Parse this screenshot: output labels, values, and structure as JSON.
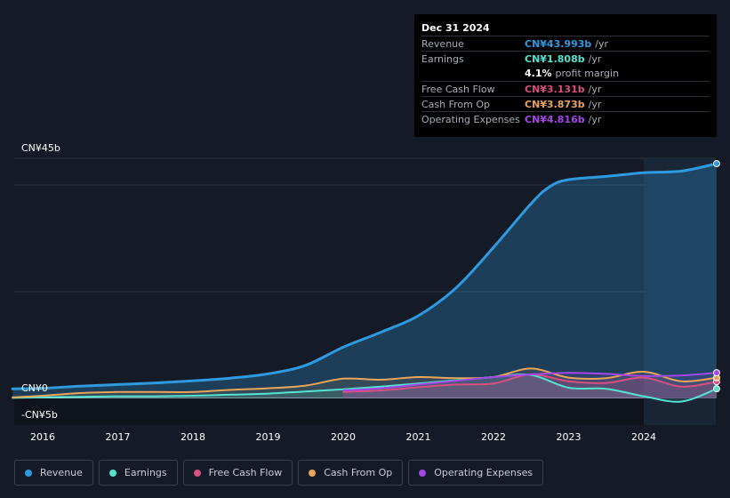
{
  "tooltip": {
    "date": "Dec 31 2024",
    "rows": [
      {
        "label": "Revenue",
        "value": "CN¥43.993b",
        "unit": "/yr",
        "color": "#2f9ae0"
      },
      {
        "label": "Earnings",
        "value": "CN¥1.808b",
        "unit": "/yr",
        "color": "#54e3d0"
      },
      {
        "label": "",
        "value": "4.1%",
        "unit": "profit margin",
        "color": "#ffffff"
      },
      {
        "label": "Free Cash Flow",
        "value": "CN¥3.131b",
        "unit": "/yr",
        "color": "#d84f82"
      },
      {
        "label": "Cash From Op",
        "value": "CN¥3.873b",
        "unit": "/yr",
        "color": "#e8a55b"
      },
      {
        "label": "Operating Expenses",
        "value": "CN¥4.816b",
        "unit": "/yr",
        "color": "#a347e8"
      }
    ]
  },
  "y_labels": {
    "top": "CN¥45b",
    "zero": "CN¥0",
    "bottom": "-CN¥5b"
  },
  "legend": [
    {
      "label": "Revenue",
      "color": "#2f9ae0"
    },
    {
      "label": "Earnings",
      "color": "#54e3d0"
    },
    {
      "label": "Free Cash Flow",
      "color": "#d84f82"
    },
    {
      "label": "Cash From Op",
      "color": "#e8a55b"
    },
    {
      "label": "Operating Expenses",
      "color": "#a347e8"
    }
  ],
  "chart_data": {
    "type": "line",
    "ylim": [
      -5,
      45
    ],
    "x_ticks": [
      "2016",
      "2017",
      "2018",
      "2019",
      "2020",
      "2021",
      "2022",
      "2023",
      "2024"
    ],
    "series": [
      {
        "name": "Revenue",
        "color": "#2f9ae0",
        "points": [
          [
            2015.6,
            1.8
          ],
          [
            2016.0,
            1.9
          ],
          [
            2016.5,
            2.3
          ],
          [
            2017.0,
            2.6
          ],
          [
            2017.5,
            2.9
          ],
          [
            2018.0,
            3.3
          ],
          [
            2018.5,
            3.8
          ],
          [
            2019.0,
            4.6
          ],
          [
            2019.5,
            6.2
          ],
          [
            2020.0,
            9.6
          ],
          [
            2020.5,
            12.4
          ],
          [
            2021.0,
            15.5
          ],
          [
            2021.5,
            20.7
          ],
          [
            2022.0,
            28.3
          ],
          [
            2022.5,
            36.5
          ],
          [
            2022.75,
            39.7
          ],
          [
            2023.0,
            41.0
          ],
          [
            2023.5,
            41.6
          ],
          [
            2024.0,
            42.3
          ],
          [
            2024.5,
            42.6
          ],
          [
            2024.97,
            43.993
          ]
        ]
      },
      {
        "name": "Earnings",
        "color": "#54e3d0",
        "points": [
          [
            2015.6,
            0.1
          ],
          [
            2016.0,
            0.2
          ],
          [
            2016.5,
            0.3
          ],
          [
            2017.0,
            0.4
          ],
          [
            2017.5,
            0.4
          ],
          [
            2018.0,
            0.5
          ],
          [
            2018.5,
            0.7
          ],
          [
            2019.0,
            0.9
          ],
          [
            2019.5,
            1.3
          ],
          [
            2020.0,
            1.7
          ],
          [
            2020.5,
            2.2
          ],
          [
            2021.0,
            2.8
          ],
          [
            2021.5,
            3.4
          ],
          [
            2022.0,
            4.0
          ],
          [
            2022.5,
            4.4
          ],
          [
            2023.0,
            2.0
          ],
          [
            2023.5,
            1.8
          ],
          [
            2024.0,
            0.4
          ],
          [
            2024.5,
            -0.6
          ],
          [
            2024.97,
            1.808
          ]
        ]
      },
      {
        "name": "Free Cash Flow",
        "color": "#d84f82",
        "points": [
          [
            2020.0,
            1.2
          ],
          [
            2020.5,
            1.5
          ],
          [
            2021.0,
            2.1
          ],
          [
            2021.5,
            2.6
          ],
          [
            2022.0,
            2.8
          ],
          [
            2022.5,
            4.5
          ],
          [
            2023.0,
            3.2
          ],
          [
            2023.5,
            2.9
          ],
          [
            2024.0,
            3.9
          ],
          [
            2024.5,
            2.2
          ],
          [
            2024.97,
            3.131
          ]
        ]
      },
      {
        "name": "Cash From Op",
        "color": "#e8a55b",
        "points": [
          [
            2015.6,
            0.2
          ],
          [
            2016.0,
            0.5
          ],
          [
            2016.5,
            1.0
          ],
          [
            2017.0,
            1.2
          ],
          [
            2017.5,
            1.2
          ],
          [
            2018.0,
            1.2
          ],
          [
            2018.5,
            1.6
          ],
          [
            2019.0,
            1.9
          ],
          [
            2019.5,
            2.4
          ],
          [
            2020.0,
            3.7
          ],
          [
            2020.5,
            3.5
          ],
          [
            2021.0,
            4.0
          ],
          [
            2021.5,
            3.8
          ],
          [
            2022.0,
            4.0
          ],
          [
            2022.5,
            5.6
          ],
          [
            2023.0,
            3.9
          ],
          [
            2023.5,
            3.8
          ],
          [
            2024.0,
            5.0
          ],
          [
            2024.5,
            3.2
          ],
          [
            2024.97,
            3.873
          ]
        ]
      },
      {
        "name": "Operating Expenses",
        "color": "#a347e8",
        "points": [
          [
            2020.0,
            1.5
          ],
          [
            2020.5,
            1.9
          ],
          [
            2021.0,
            2.6
          ],
          [
            2021.5,
            3.3
          ],
          [
            2022.0,
            4.0
          ],
          [
            2022.5,
            4.5
          ],
          [
            2023.0,
            4.8
          ],
          [
            2023.5,
            4.6
          ],
          [
            2024.0,
            4.2
          ],
          [
            2024.5,
            4.3
          ],
          [
            2024.97,
            4.816
          ]
        ]
      }
    ]
  }
}
